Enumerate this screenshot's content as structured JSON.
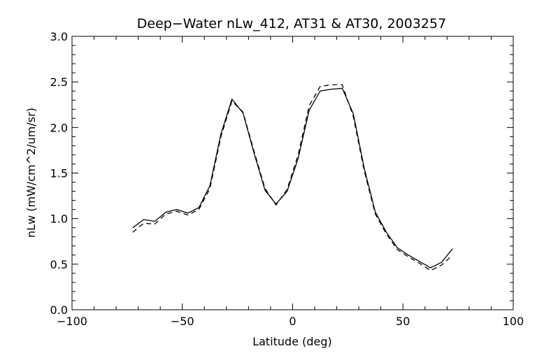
{
  "chart_data": {
    "type": "line",
    "title": "Deep−Water nLw_412, AT31 & AT30, 2003257",
    "xlabel": "Latitude (deg)",
    "ylabel": "nLw (mW/cm^2/um/sr)",
    "xlim": [
      -100,
      100
    ],
    "ylim": [
      0.0,
      3.0
    ],
    "xticks": [
      "−100",
      "−50",
      "0",
      "50",
      "100"
    ],
    "xtick_values": [
      -100,
      -50,
      0,
      50,
      100
    ],
    "yticks": [
      "0.0",
      "0.5",
      "1.0",
      "1.5",
      "2.0",
      "2.5",
      "3.0"
    ],
    "ytick_values": [
      0.0,
      0.5,
      1.0,
      1.5,
      2.0,
      2.5,
      3.0
    ],
    "grid": false,
    "series": [
      {
        "style": "solid",
        "color": "#000000",
        "x": [
          -72.5,
          -67.5,
          -62.5,
          -57.5,
          -52.5,
          -47.5,
          -42.5,
          -37.5,
          -32.5,
          -27.5,
          -22.5,
          -17.5,
          -12.5,
          -7.5,
          -2.5,
          2.5,
          7.5,
          12.5,
          17.5,
          22.5,
          27.5,
          32.5,
          37.5,
          42.5,
          47.5,
          52.5,
          57.5,
          62.5,
          67.5,
          72.5
        ],
        "y": [
          0.9,
          0.99,
          0.97,
          1.07,
          1.1,
          1.06,
          1.12,
          1.36,
          1.93,
          2.31,
          2.16,
          1.72,
          1.31,
          1.16,
          1.3,
          1.66,
          2.19,
          2.4,
          2.42,
          2.43,
          2.15,
          1.55,
          1.07,
          0.85,
          0.68,
          0.6,
          0.53,
          0.46,
          0.52,
          0.67
        ]
      },
      {
        "style": "dashed",
        "color": "#000000",
        "x": [
          -72.5,
          -67.5,
          -62.5,
          -57.5,
          -52.5,
          -47.5,
          -42.5,
          -37.5,
          -32.5,
          -27.5,
          -22.5,
          -17.5,
          -12.5,
          -7.5,
          -2.5,
          2.5,
          7.5,
          12.5,
          17.5,
          22.5,
          27.5,
          32.5,
          37.5,
          42.5,
          47.5,
          52.5,
          57.5,
          62.5,
          67.5,
          72.5
        ],
        "y": [
          0.85,
          0.95,
          0.94,
          1.05,
          1.08,
          1.04,
          1.1,
          1.33,
          1.9,
          2.29,
          2.17,
          1.74,
          1.33,
          1.15,
          1.32,
          1.7,
          2.24,
          2.45,
          2.47,
          2.47,
          2.12,
          1.52,
          1.05,
          0.83,
          0.66,
          0.58,
          0.51,
          0.43,
          0.49,
          0.6
        ]
      }
    ]
  }
}
